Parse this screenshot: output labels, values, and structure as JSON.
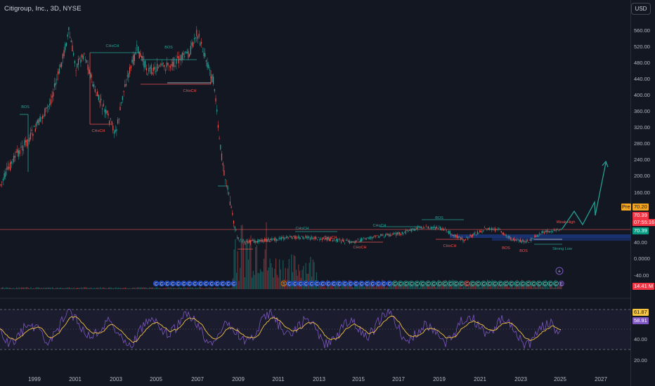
{
  "header": {
    "title": "Citigroup, Inc., 3D, NYSE",
    "currency": "USD"
  },
  "price_axis": {
    "ticks": [
      "560.00",
      "520.00",
      "480.00",
      "440.00",
      "400.00",
      "360.00",
      "320.00",
      "280.00",
      "240.00",
      "200.00",
      "160.00",
      "40.00",
      "0.0000",
      "-40.00"
    ],
    "pre_label": "Pre",
    "pre_value": "70.20",
    "last_price": "70.39",
    "countdown": "07:55:16",
    "ref_price": "70.39",
    "volume_value": "14.41 M"
  },
  "rsi_axis": {
    "ticks": [
      "40.00",
      "20.00"
    ],
    "rsi_value": "61.87",
    "rsi_ma_value": "58.91"
  },
  "time_axis": {
    "labels": [
      "1999",
      "2001",
      "2003",
      "2005",
      "2007",
      "2009",
      "2011",
      "2013",
      "2015",
      "2017",
      "2019",
      "2021",
      "2023",
      "2025",
      "2027"
    ]
  },
  "annotations": {
    "bos": "BOS",
    "choch": "CHoCH",
    "strong_low": "Strong Low",
    "weak_high": "Weak High",
    "event_c": "C",
    "event_s": "S",
    "event_e": "E"
  },
  "colors": {
    "background": "#131722",
    "bull": "#26a69a",
    "bear": "#ef5350",
    "rsi": "#7e57c2",
    "rsi_ma": "#f5c542",
    "price_tag": "#f23645",
    "ref_tag": "#089981",
    "pre_tag": "#f5a623"
  }
}
